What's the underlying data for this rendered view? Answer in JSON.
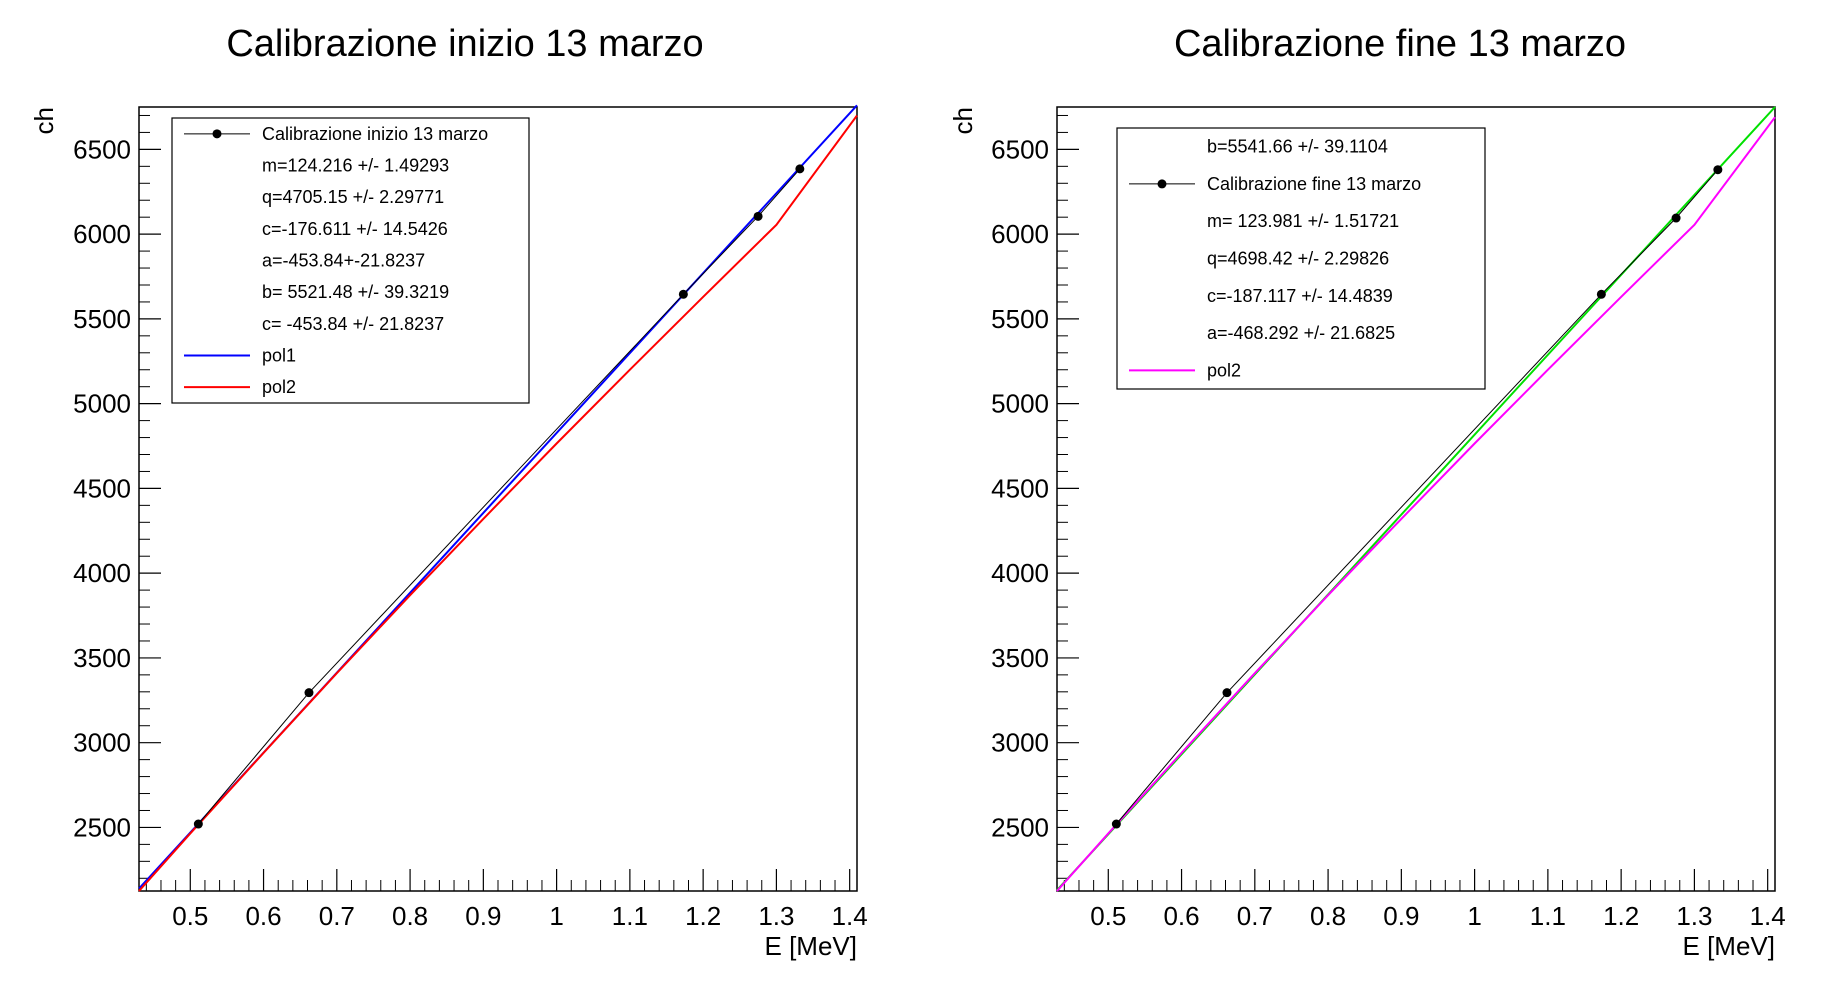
{
  "chart_data": [
    {
      "type": "scatter",
      "title": "Calibrazione inizio 13 marzo",
      "xlabel": "E [MeV]",
      "ylabel": "ch",
      "xlim": [
        0.43,
        1.41
      ],
      "ylim": [
        2125,
        6750
      ],
      "x_ticks": [
        "0.5",
        "0.6",
        "0.7",
        "0.8",
        "0.9",
        "1",
        "1.1",
        "1.2",
        "1.3",
        "1.4"
      ],
      "y_ticks": [
        "2500",
        "3000",
        "3500",
        "4000",
        "4500",
        "5000",
        "5500",
        "6000",
        "6500"
      ],
      "grid": false,
      "legend_position": "top-left",
      "series": [
        {
          "name": "Calibrazione inizio 13 marzo",
          "kind": "points",
          "color": "#000000",
          "x": [
            0.511,
            0.662,
            1.173,
            1.275,
            1.332
          ],
          "y": [
            2520,
            3295,
            5645,
            6105,
            6385
          ]
        },
        {
          "name": "pol1",
          "kind": "line",
          "color": "#0000ff",
          "x": [
            0.43,
            1.41
          ],
          "y": [
            2140,
            6760
          ]
        },
        {
          "name": "pol2",
          "kind": "line",
          "color": "#ff0000",
          "x": [
            0.43,
            0.5,
            0.6,
            0.7,
            0.8,
            0.9,
            1.0,
            1.1,
            1.2,
            1.3,
            1.41
          ],
          "y": [
            2125,
            2465,
            2940,
            3410,
            3870,
            4320,
            4765,
            5200,
            5630,
            6055,
            6700
          ]
        }
      ],
      "legend": [
        {
          "kind": "marker",
          "text": "Calibrazione inizio 13 marzo",
          "color": "#000000"
        },
        {
          "kind": "text",
          "text": "m=124.216   +/-   1.49293"
        },
        {
          "kind": "text",
          "text": "q=4705.15   +/-   2.29771"
        },
        {
          "kind": "text",
          "text": "c=-176.611   +/-   14.5426"
        },
        {
          "kind": "text",
          "text": "a=-453.84+-21.8237"
        },
        {
          "kind": "text",
          "text": "b= 5521.48   +/-   39.3219"
        },
        {
          "kind": "text",
          "text": "c= -453.84   +/-   21.8237"
        },
        {
          "kind": "line",
          "text": "pol1",
          "color": "#0000ff"
        },
        {
          "kind": "line",
          "text": "pol2",
          "color": "#ff0000"
        }
      ]
    },
    {
      "type": "scatter",
      "title": "Calibrazione fine 13 marzo",
      "xlabel": "E [MeV]",
      "ylabel": "ch",
      "xlim": [
        0.43,
        1.41
      ],
      "ylim": [
        2125,
        6750
      ],
      "x_ticks": [
        "0.5",
        "0.6",
        "0.7",
        "0.8",
        "0.9",
        "1",
        "1.1",
        "1.2",
        "1.3",
        "1.4"
      ],
      "y_ticks": [
        "2500",
        "3000",
        "3500",
        "4000",
        "4500",
        "5000",
        "5500",
        "6000",
        "6500"
      ],
      "grid": false,
      "legend_position": "top-left",
      "series": [
        {
          "name": "Calibrazione fine 13 marzo",
          "kind": "points",
          "color": "#000000",
          "x": [
            0.511,
            0.662,
            1.173,
            1.275,
            1.332
          ],
          "y": [
            2520,
            3295,
            5645,
            6095,
            6380
          ]
        },
        {
          "name": "",
          "kind": "line",
          "color": "#00e000",
          "x": [
            0.43,
            1.41
          ],
          "y": [
            2130,
            6750
          ]
        },
        {
          "name": "pol2",
          "kind": "line",
          "color": "#ff00ff",
          "x": [
            0.43,
            0.5,
            0.6,
            0.7,
            0.8,
            0.9,
            1.0,
            1.1,
            1.2,
            1.3,
            1.41
          ],
          "y": [
            2125,
            2465,
            2940,
            3410,
            3870,
            4320,
            4765,
            5200,
            5630,
            6055,
            6690
          ]
        }
      ],
      "legend": [
        {
          "kind": "text",
          "text": "b=5541.66   +/-   39.1104"
        },
        {
          "kind": "marker",
          "text": "Calibrazione fine 13 marzo",
          "color": "#000000"
        },
        {
          "kind": "text",
          "text": "m= 123.981   +/-   1.51721"
        },
        {
          "kind": "text",
          "text": "q=4698.42   +/-   2.29826"
        },
        {
          "kind": "text",
          "text": "c=-187.117   +/-   14.4839"
        },
        {
          "kind": "text",
          "text": "a=-468.292   +/-   21.6825"
        },
        {
          "kind": "line",
          "text": "pol2",
          "color": "#ff00ff"
        }
      ]
    }
  ]
}
